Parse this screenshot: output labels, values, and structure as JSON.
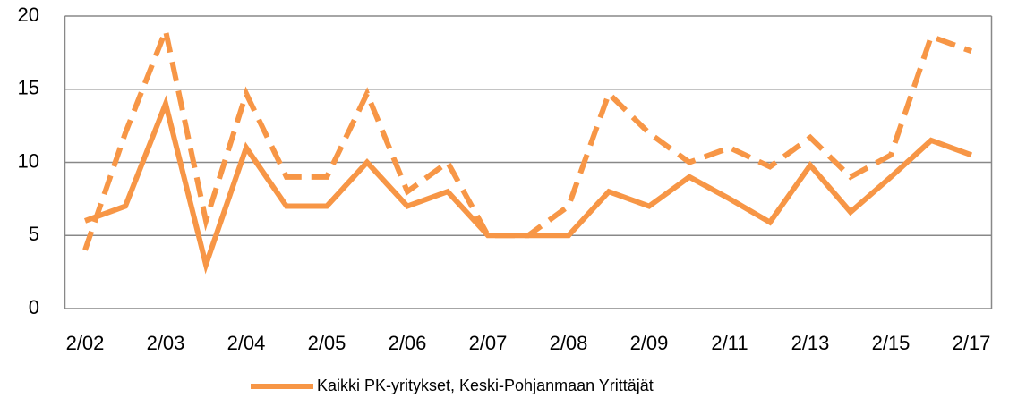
{
  "chart_data": {
    "type": "line",
    "categories": [
      "2/02",
      null,
      "2/03",
      null,
      "2/04",
      null,
      "2/05",
      null,
      "2/06",
      null,
      "2/07",
      null,
      "2/08",
      null,
      "2/09",
      null,
      "2/11",
      null,
      "2/13",
      null,
      "2/15",
      null,
      "2/17"
    ],
    "series": [
      {
        "name": "Kaikki PK-yritykset, Keski-Pohjanmaan Yrittäjät",
        "color": "#f79646",
        "dashed": false,
        "values": [
          6,
          7,
          14,
          3,
          11,
          7,
          7,
          10,
          7,
          8,
          5,
          5,
          5,
          8,
          7,
          9,
          7.5,
          5.9,
          9.8,
          6.6,
          9,
          11.5,
          10.5
        ]
      },
      {
        "color": "#f79646",
        "dashed": true,
        "values": [
          4,
          12,
          19,
          6,
          14.7,
          9,
          9,
          14.7,
          8,
          10,
          5,
          5,
          7,
          14.7,
          12,
          10,
          11,
          9.7,
          11.7,
          9,
          10.5,
          18.6,
          17.6
        ]
      }
    ],
    "ylim": [
      0,
      20
    ],
    "yticks": [
      0,
      5,
      10,
      15,
      20
    ],
    "grid": true,
    "legend": "bottom"
  }
}
